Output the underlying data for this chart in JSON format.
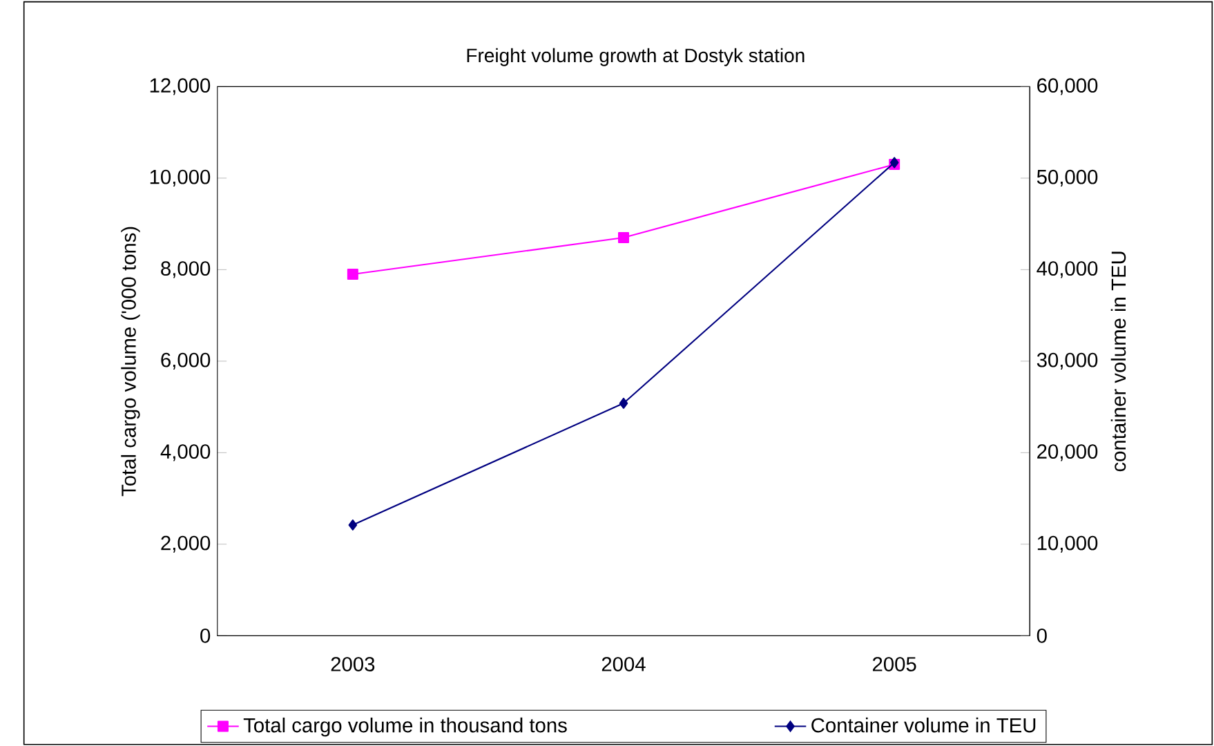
{
  "chart_data": {
    "type": "line",
    "title": "Freight volume growth at Dostyk station",
    "ylabel": "Total cargo volume ('000 tons)",
    "y2label": "container volume  in TEU",
    "categories": [
      "2003",
      "2004",
      "2005"
    ],
    "series": [
      {
        "name": "Total cargo volume in thousand tons",
        "color": "#ff00ff",
        "marker": "square",
        "values": [
          7900,
          8700,
          10300
        ]
      },
      {
        "name": "Container volume in TEU",
        "color": "#000080",
        "marker": "diamond",
        "axis": "y2",
        "values": [
          12100,
          25400,
          51700
        ]
      }
    ],
    "ylim": [
      0,
      12000
    ],
    "yticks": [
      0,
      {
        "value": 2000,
        "label": "2,000"
      },
      {
        "value": 4000,
        "label": "4,000"
      },
      {
        "value": 6000,
        "label": "6,000"
      },
      {
        "value": 8000,
        "label": "8,000"
      },
      {
        "value": 10000,
        "label": "10,000"
      },
      {
        "value": 12000,
        "label": "12,000"
      }
    ],
    "y2lim": [
      0,
      60000
    ],
    "y2ticks": [
      0,
      {
        "value": 10000,
        "label": "10,000"
      },
      {
        "value": 20000,
        "label": "20,000"
      },
      {
        "value": 30000,
        "label": "30,000"
      },
      {
        "value": 40000,
        "label": "40,000"
      },
      {
        "value": 50000,
        "label": "50,000"
      },
      {
        "value": 60000,
        "label": "60,000"
      }
    ],
    "legend": "bottom",
    "grid": false
  }
}
